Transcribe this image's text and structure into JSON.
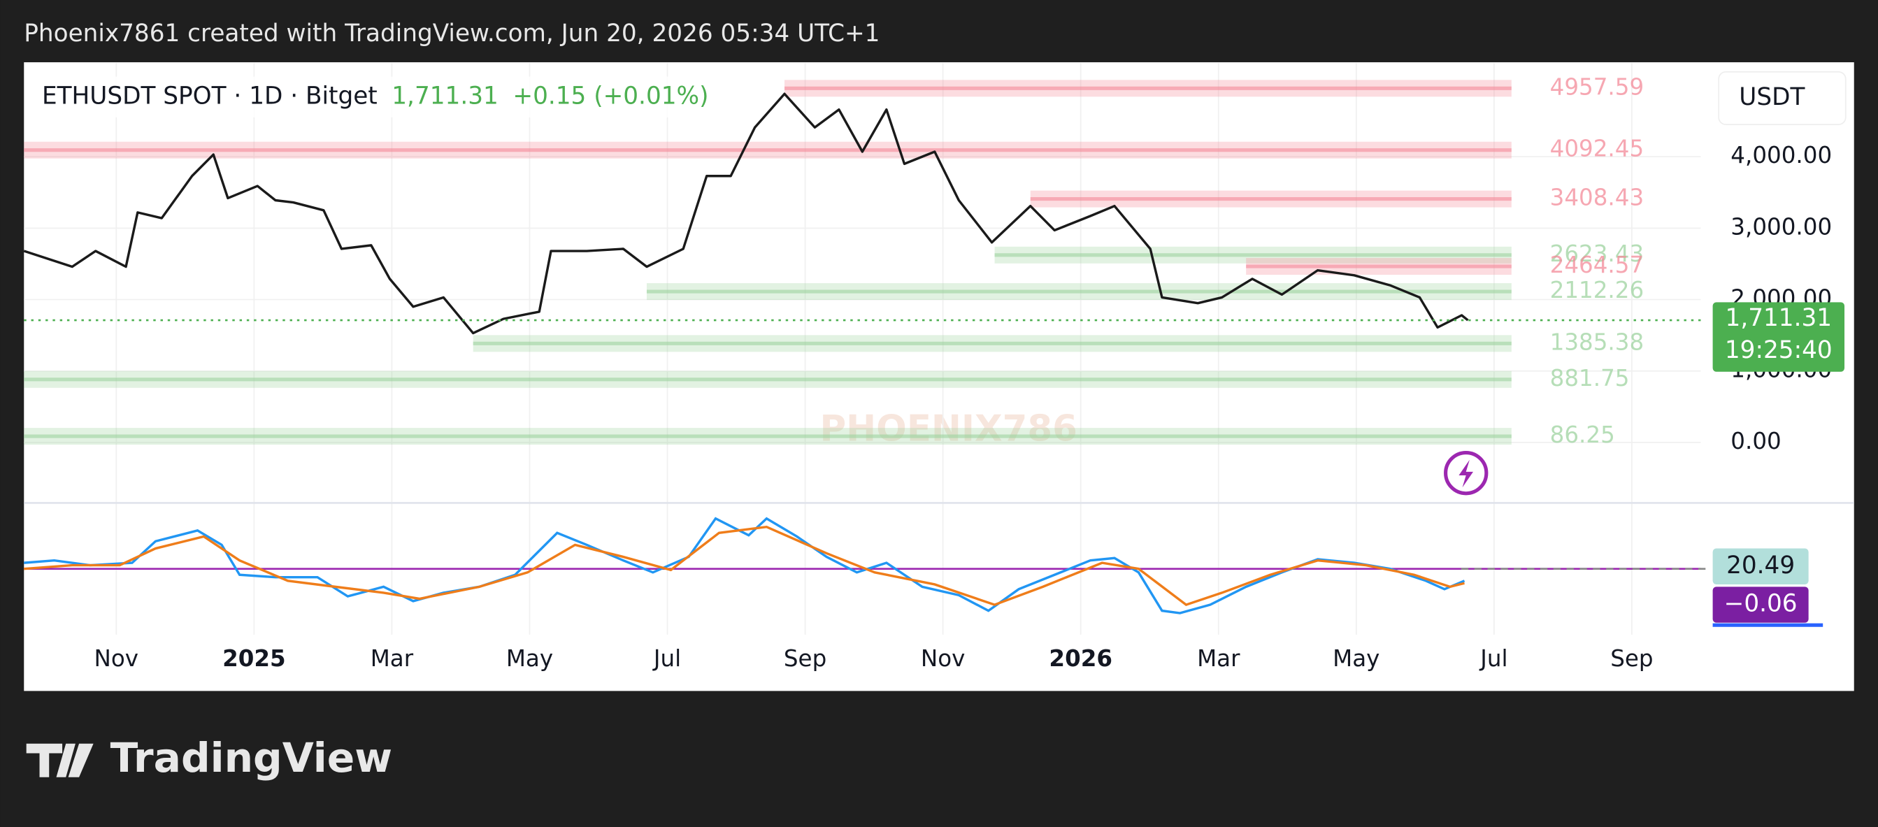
{
  "header": "Phoenix7861 created with TradingView.com, Jun 20, 2026 05:34 UTC+1",
  "footer_logo": "TradingView",
  "watermark": "PHOENIX786",
  "chart_data": {
    "type": "line",
    "legend": {
      "symbol": "ETHUSDT SPOT · 1D · Bitget",
      "change": "+0.15 (+0.01%)"
    },
    "y_unit": "USDT",
    "xlim": [
      -0.34,
      24.0
    ],
    "xticks": [
      {
        "value": 1,
        "label": "Nov"
      },
      {
        "value": 3,
        "label": "2025"
      },
      {
        "value": 5,
        "label": "Mar"
      },
      {
        "value": 7,
        "label": "May"
      },
      {
        "value": 9,
        "label": "Jul"
      },
      {
        "value": 11,
        "label": "Sep"
      },
      {
        "value": 13,
        "label": "Nov"
      },
      {
        "value": 15,
        "label": "2026"
      },
      {
        "value": 17,
        "label": "Mar"
      },
      {
        "value": 19,
        "label": "May"
      },
      {
        "value": 21,
        "label": "Jul"
      },
      {
        "value": 23,
        "label": "Sep"
      }
    ],
    "ylim": [
      -847,
      5322
    ],
    "yticks": [
      {
        "value": 0,
        "label": "0.00"
      },
      {
        "value": 1000,
        "label": "1,000.00"
      },
      {
        "value": 2000,
        "label": "2,000.00"
      },
      {
        "value": 3000,
        "label": "3,000.00"
      },
      {
        "value": 4000,
        "label": "4,000.00"
      }
    ],
    "grid": true,
    "color": "#1a1a1a",
    "x": [
      -0.34,
      0.36,
      0.7,
      1.14,
      1.31,
      1.66,
      2.1,
      2.41,
      2.62,
      3.05,
      3.31,
      3.57,
      4.01,
      4.27,
      4.7,
      4.97,
      5.31,
      5.75,
      6.18,
      6.62,
      7.14,
      7.31,
      7.83,
      8.36,
      8.7,
      9.23,
      9.57,
      9.92,
      10.27,
      10.7,
      11.14,
      11.49,
      11.83,
      12.18,
      12.44,
      12.88,
      13.23,
      13.71,
      14.27,
      14.62,
      15.14,
      15.49,
      16.01,
      16.18,
      16.7,
      17.05,
      17.49,
      17.92,
      18.44,
      18.97,
      19.49,
      19.92,
      20.18,
      20.53,
      20.62
    ],
    "values": [
      2680,
      2460,
      2680,
      2460,
      3220,
      3140,
      3730,
      4030,
      3420,
      3590,
      3390,
      3360,
      3250,
      2710,
      2760,
      2290,
      1900,
      2030,
      1530,
      1730,
      1830,
      2680,
      2680,
      2710,
      2460,
      2710,
      3730,
      3730,
      4410,
      4880,
      4410,
      4660,
      4070,
      4660,
      3900,
      4070,
      3390,
      2800,
      3310,
      2970,
      3170,
      3310,
      2710,
      2030,
      1950,
      2030,
      2290,
      2070,
      2410,
      2340,
      2200,
      2030,
      1610,
      1780,
      1711.31
    ],
    "last_price": {
      "value": 1711.31,
      "label": "1,711.31",
      "countdown": "19:25:40",
      "color": "#4caf50"
    },
    "levels": [
      {
        "value": 4957.59,
        "start": 10.7,
        "color": "#f48a99"
      },
      {
        "value": 4092.45,
        "start": -0.34,
        "color": "#f48a99"
      },
      {
        "value": 3408.43,
        "start": 14.27,
        "color": "#f48a99"
      },
      {
        "value": 2623.43,
        "start": 13.75,
        "color": "#9ed3a0"
      },
      {
        "value": 2464.57,
        "start": 17.4,
        "color": "#f48a99"
      },
      {
        "value": 2112.26,
        "start": 8.7,
        "color": "#9ed3a0"
      },
      {
        "value": 1385.38,
        "start": 6.18,
        "color": "#9ed3a0"
      },
      {
        "value": 881.75,
        "start": -0.34,
        "color": "#9ed3a0"
      },
      {
        "value": 86.25,
        "start": -0.34,
        "color": "#9ed3a0"
      }
    ],
    "macd": {
      "type": "line",
      "ylim": [
        -400,
        400
      ],
      "series": [
        {
          "color": "#2196f3",
          "x": [
            -0.34,
            0.1,
            0.62,
            1.23,
            1.57,
            2.18,
            2.53,
            2.79,
            3.31,
            3.92,
            4.36,
            4.88,
            5.31,
            5.75,
            6.27,
            6.79,
            7.4,
            7.83,
            8.36,
            8.79,
            9.31,
            9.7,
            10.18,
            10.44,
            10.88,
            11.31,
            11.75,
            12.18,
            12.7,
            13.23,
            13.66,
            14.1,
            14.62,
            15.14,
            15.49,
            15.84,
            16.18,
            16.44,
            16.88,
            17.4,
            17.92,
            18.44,
            18.97,
            19.49,
            20.01,
            20.28,
            20.57
          ],
          "values": [
            40,
            56,
            24,
            40,
            184,
            256,
            160,
            -40,
            -56,
            -56,
            -184,
            -120,
            -216,
            -160,
            -120,
            -40,
            240,
            160,
            56,
            -24,
            80,
            336,
            224,
            336,
            216,
            80,
            -24,
            40,
            -120,
            -176,
            -280,
            -136,
            -40,
            56,
            72,
            -24,
            -280,
            -296,
            -240,
            -120,
            -24,
            64,
            40,
            0,
            -80,
            -136,
            -80
          ]
        },
        {
          "color": "#ef7d1a",
          "x": [
            -0.34,
            0.36,
            1.05,
            1.57,
            2.27,
            2.79,
            3.49,
            4.18,
            4.88,
            5.4,
            6.27,
            6.97,
            7.66,
            8.36,
            9.05,
            9.75,
            10.44,
            11.31,
            12.01,
            12.88,
            13.75,
            14.45,
            15.31,
            15.84,
            16.53,
            17.05,
            17.75,
            18.44,
            19.14,
            19.84,
            20.36,
            20.57
          ],
          "values": [
            0,
            24,
            24,
            136,
            216,
            56,
            -80,
            -120,
            -160,
            -200,
            -120,
            -24,
            160,
            80,
            -8,
            240,
            280,
            104,
            -24,
            -104,
            -240,
            -120,
            40,
            0,
            -240,
            -160,
            -40,
            56,
            24,
            -40,
            -120,
            -96
          ]
        }
      ],
      "labels": [
        {
          "value": 20.49,
          "color": "#b2dfdb"
        },
        {
          "value": -0.06,
          "label": "−0.06",
          "color": "#7b1fa2"
        }
      ]
    }
  }
}
